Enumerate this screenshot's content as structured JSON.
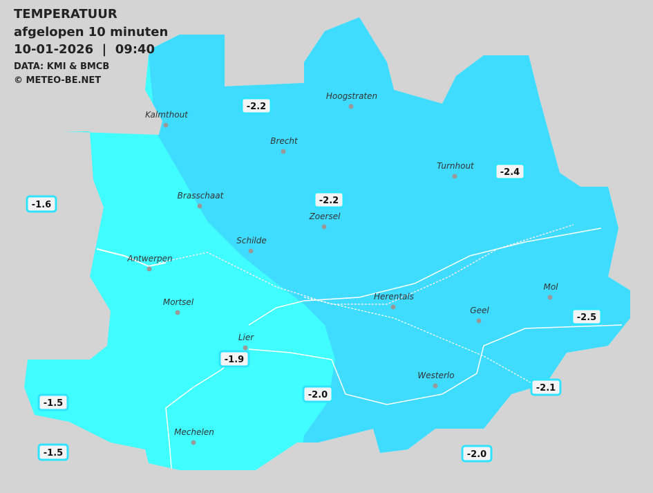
{
  "header": {
    "title": "TEMPERATUUR",
    "subtitle": "afgelopen 10 minuten",
    "timestamp": "10-01-2026  |  09:40",
    "source": "DATA: KMI & BMCB",
    "copyright": "© METEO-BE.NET"
  },
  "cities": [
    "Kalmthout",
    "Hoogstraten",
    "Brecht",
    "Turnhout",
    "Brasschaat",
    "Zoersel",
    "Schilde",
    "Antwerpen",
    "Herentals",
    "Mol",
    "Geel",
    "Mortsel",
    "Lier",
    "Westerlo",
    "Mechelen"
  ],
  "readings": [
    "-2.2",
    "-1.6",
    "-2.2",
    "-2.4",
    "-2.5",
    "-1.9",
    "-2.0",
    "-2.1",
    "-1.5",
    "-1.5",
    "-2.0"
  ]
}
